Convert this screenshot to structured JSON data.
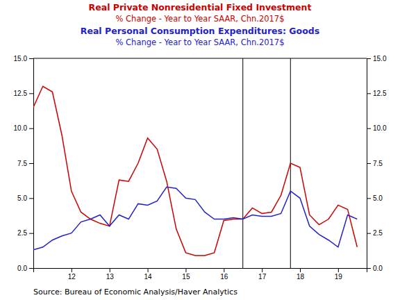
{
  "chart_data": {
    "type": "line",
    "x": [
      11.0,
      11.25,
      11.5,
      11.75,
      12.0,
      12.25,
      12.5,
      12.75,
      13.0,
      13.25,
      13.5,
      13.75,
      14.0,
      14.25,
      14.5,
      14.75,
      15.0,
      15.25,
      15.5,
      15.75,
      16.0,
      16.25,
      16.5,
      16.75,
      17.0,
      17.25,
      17.5,
      17.75,
      18.0,
      18.25,
      18.5,
      18.75,
      19.0,
      19.25,
      19.5
    ],
    "series": [
      {
        "name": "Real Private Nonresidential Fixed Investment",
        "subtitle": "% Change - Year to Year    SAAR, Chn.2017$",
        "color": "#CC0000",
        "values": [
          11.5,
          13.0,
          12.6,
          9.5,
          5.5,
          4.0,
          3.5,
          3.2,
          3.0,
          6.3,
          6.2,
          7.5,
          9.3,
          8.5,
          6.2,
          2.8,
          1.1,
          0.9,
          0.9,
          1.1,
          3.4,
          3.5,
          3.5,
          4.3,
          3.9,
          4.0,
          5.2,
          7.5,
          7.2,
          3.8,
          3.1,
          3.5,
          4.5,
          4.2,
          1.5
        ]
      },
      {
        "name": "Real Personal Consumption Expenditures:  Goods",
        "subtitle": "% Change - Year to Year    SAAR, Chn.2017$",
        "color": "#2222CC",
        "values": [
          1.3,
          1.5,
          2.0,
          2.3,
          2.5,
          3.3,
          3.5,
          3.8,
          3.0,
          3.8,
          3.5,
          4.6,
          4.5,
          4.8,
          5.8,
          5.7,
          5.0,
          4.9,
          4.0,
          3.5,
          3.5,
          3.6,
          3.5,
          3.8,
          3.7,
          3.7,
          3.9,
          5.5,
          5.0,
          3.0,
          2.4,
          2.0,
          1.5,
          3.8,
          3.5
        ]
      }
    ],
    "vlines": [
      16.5,
      17.75
    ],
    "xlim": [
      11.0,
      19.75
    ],
    "xticks": [
      12,
      13,
      14,
      15,
      16,
      17,
      18,
      19
    ],
    "ylim": [
      0.0,
      15.0
    ],
    "yticks": [
      {
        "value": 0.0,
        "label": "0.0"
      },
      2.5,
      {
        "value": 5.0,
        "label": "5.0"
      },
      7.5,
      {
        "value": 10.0,
        "label": "10.0"
      },
      12.5,
      {
        "value": 15.0,
        "label": "15.0"
      }
    ],
    "y2lim": [
      0.0,
      15.0
    ],
    "y2ticks": [
      {
        "value": 0.0,
        "label": "0.0"
      },
      2.5,
      {
        "value": 5.0,
        "label": "5.0"
      },
      7.5,
      {
        "value": 10.0,
        "label": "10.0"
      },
      12.5,
      {
        "value": 15.0,
        "label": "15.0"
      }
    ],
    "annotations": [
      "Source:  Bureau of Economic Analysis/Haver Analytics"
    ],
    "grid": false
  }
}
